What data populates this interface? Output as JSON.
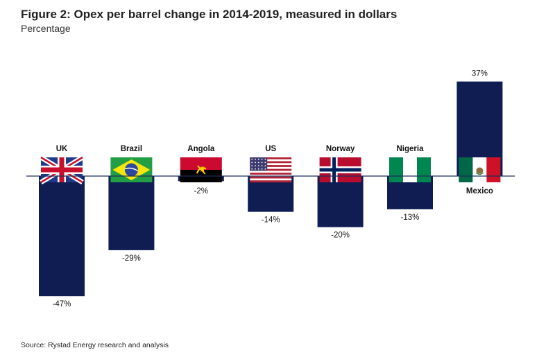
{
  "title": "Figure 2: Opex per barrel change in 2014-2019, measured in dollars",
  "subtitle": "Percentage",
  "source": "Source: Rystad Energy research and analysis",
  "colors": {
    "bar": "#0f1d53",
    "axis": "#1f2d5a"
  },
  "chart_data": {
    "type": "bar",
    "title": "Figure 2: Opex per barrel change in 2014-2019, measured in dollars",
    "ylabel": "Percentage",
    "unit": "%",
    "ylim": [
      -47,
      37
    ],
    "categories": [
      "UK",
      "Brazil",
      "Angola",
      "US",
      "Norway",
      "Nigeria",
      "Mexico"
    ],
    "values": [
      -47,
      -29,
      -2,
      -14,
      -20,
      -13,
      37
    ],
    "value_labels": [
      "-47%",
      "-29%",
      "-2%",
      "-14%",
      "-20%",
      "-13%",
      "37%"
    ],
    "flags": [
      "uk-flag",
      "brazil-flag",
      "angola-flag",
      "us-flag",
      "norway-flag",
      "nigeria-flag",
      "mexico-flag"
    ]
  }
}
